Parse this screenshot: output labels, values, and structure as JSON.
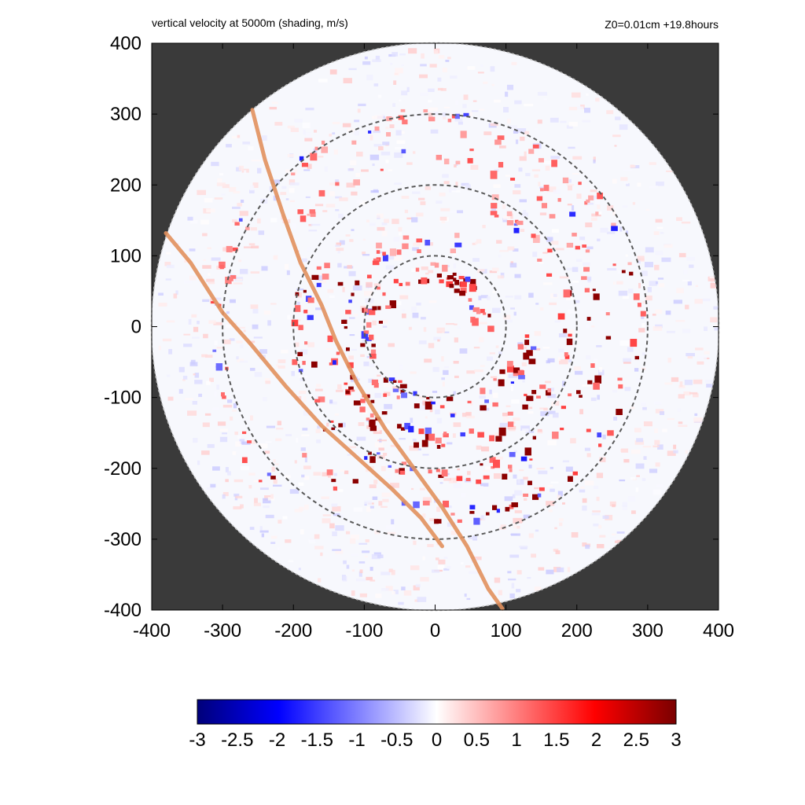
{
  "chart_data": {
    "type": "heatmap",
    "title": "vertical velocity at 5000m (shading, m/s)",
    "subtitle": "Z0=0.01cm  +19.8hours",
    "xlabel": "",
    "ylabel": "",
    "xlim": [
      -400,
      400
    ],
    "ylim": [
      -400,
      400
    ],
    "x_ticks": [
      "-400",
      "-300",
      "-200",
      "-100",
      "0",
      "100",
      "200",
      "300",
      "400"
    ],
    "y_ticks": [
      "400",
      "300",
      "200",
      "100",
      "0",
      "-100",
      "-200",
      "-300",
      "-400"
    ],
    "domain_radius": 400,
    "range_circles": [
      100,
      200,
      300
    ],
    "grid": false,
    "colorbar": {
      "min": -3,
      "max": 3,
      "ticks": [
        "-3",
        "-2.5",
        "-2",
        "-1.5",
        "-1",
        "-0.5",
        "0",
        "0.5",
        "1",
        "1.5",
        "2",
        "2.5",
        "3"
      ],
      "colors": [
        "#00007a",
        "#0000ff",
        "#ffffff",
        "#ff0000",
        "#7a0000"
      ],
      "placement": "bottom"
    },
    "tracks": [
      [
        [
          -258,
          306
        ],
        [
          -240,
          235
        ],
        [
          -215,
          160
        ],
        [
          -190,
          90
        ],
        [
          -160,
          30
        ],
        [
          -140,
          -20
        ],
        [
          -110,
          -80
        ],
        [
          -70,
          -145
        ],
        [
          -30,
          -200
        ],
        [
          10,
          -255
        ],
        [
          45,
          -310
        ],
        [
          75,
          -370
        ],
        [
          95,
          -398
        ]
      ],
      [
        [
          -380,
          132
        ],
        [
          -345,
          90
        ],
        [
          -300,
          20
        ],
        [
          -260,
          -25
        ],
        [
          -210,
          -85
        ],
        [
          -160,
          -140
        ],
        [
          -110,
          -185
        ],
        [
          -60,
          -230
        ],
        [
          -20,
          -270
        ],
        [
          10,
          -310
        ]
      ]
    ],
    "features": {
      "background_color": "#3a3a3a",
      "circle_fill": "#f7f8fd",
      "track_color": "#e1905d",
      "circle_stroke": "#5a5a5a"
    }
  }
}
